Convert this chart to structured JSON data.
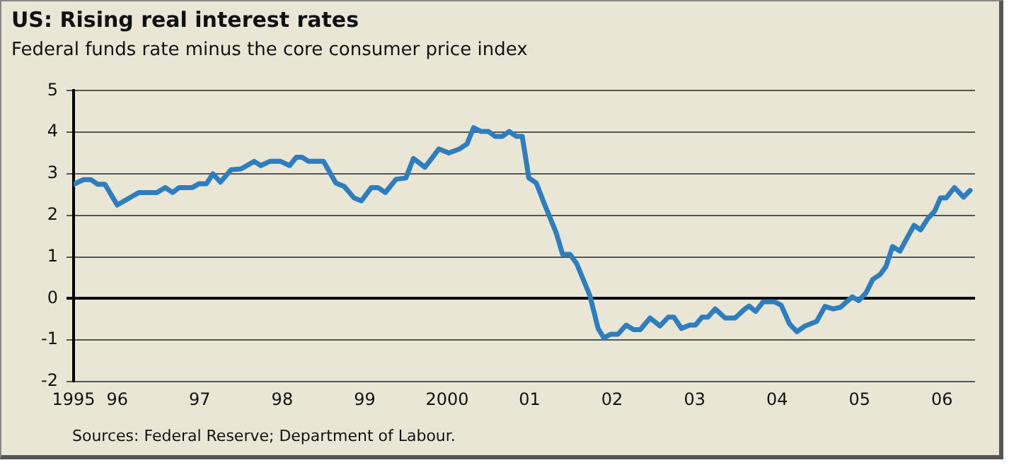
{
  "chart_data": {
    "type": "line",
    "title": "US: Rising real interest rates",
    "subtitle": "Federal funds rate minus the core consumer price index",
    "annotations": [
      "Sources: Federal Reserve; Department of Labour."
    ],
    "series": [
      {
        "color": "#2e7ebf",
        "x": [
          1995.47,
          1995.59,
          1995.68,
          1995.76,
          1995.85,
          1996.0,
          1996.26,
          1996.48,
          1996.58,
          1996.67,
          1996.75,
          1996.91,
          1996.99,
          1997.08,
          1997.16,
          1997.25,
          1997.38,
          1997.5,
          1997.66,
          1997.74,
          1997.85,
          1997.98,
          1998.09,
          1998.17,
          1998.24,
          1998.32,
          1998.5,
          1998.65,
          1998.75,
          1998.87,
          1998.96,
          1999.08,
          1999.16,
          1999.25,
          1999.38,
          1999.5,
          1999.59,
          1999.73,
          1999.9,
          2000.02,
          2000.15,
          2000.24,
          2000.32,
          2000.41,
          2000.5,
          2000.58,
          2000.67,
          2000.75,
          2000.84,
          2000.91,
          2000.99,
          2001.08,
          2001.18,
          2001.32,
          2001.4,
          2001.49,
          2001.57,
          2001.73,
          2001.83,
          2001.9,
          2001.98,
          2002.07,
          2002.17,
          2002.26,
          2002.34,
          2002.46,
          2002.58,
          2002.68,
          2002.75,
          2002.84,
          2002.94,
          2003.01,
          2003.09,
          2003.16,
          2003.25,
          2003.37,
          2003.49,
          2003.61,
          2003.66,
          2003.74,
          2003.83,
          2003.97,
          2004.05,
          2004.15,
          2004.24,
          2004.34,
          2004.48,
          2004.58,
          2004.68,
          2004.77,
          2004.82,
          2004.91,
          2004.99,
          2005.08,
          2005.16,
          2005.25,
          2005.32,
          2005.4,
          2005.49,
          2005.56,
          2005.66,
          2005.74,
          2005.83,
          2005.91,
          2005.98,
          2006.05,
          2006.15,
          2006.26,
          2006.34
        ],
        "values": [
          2.75,
          2.86,
          2.86,
          2.75,
          2.75,
          2.25,
          2.55,
          2.55,
          2.67,
          2.55,
          2.67,
          2.67,
          2.76,
          2.76,
          3.0,
          2.8,
          3.1,
          3.12,
          3.3,
          3.2,
          3.3,
          3.3,
          3.2,
          3.4,
          3.4,
          3.3,
          3.3,
          2.78,
          2.7,
          2.42,
          2.35,
          2.67,
          2.67,
          2.55,
          2.87,
          2.9,
          3.37,
          3.16,
          3.6,
          3.5,
          3.6,
          3.72,
          4.11,
          4.02,
          4.02,
          3.9,
          3.9,
          4.02,
          3.9,
          3.9,
          2.9,
          2.78,
          2.27,
          1.59,
          1.06,
          1.06,
          0.84,
          0.07,
          -0.72,
          -0.95,
          -0.86,
          -0.86,
          -0.64,
          -0.75,
          -0.75,
          -0.47,
          -0.66,
          -0.45,
          -0.45,
          -0.72,
          -0.64,
          -0.64,
          -0.45,
          -0.45,
          -0.25,
          -0.47,
          -0.47,
          -0.25,
          -0.18,
          -0.31,
          -0.08,
          -0.08,
          -0.16,
          -0.61,
          -0.8,
          -0.66,
          -0.55,
          -0.19,
          -0.25,
          -0.21,
          -0.12,
          0.04,
          -0.05,
          0.14,
          0.46,
          0.58,
          0.77,
          1.25,
          1.14,
          1.4,
          1.76,
          1.65,
          1.93,
          2.1,
          2.42,
          2.42,
          2.67,
          2.44,
          2.6
        ]
      }
    ],
    "xlim": [
      1995.47,
      2006.4
    ],
    "xticks": [
      {
        "value": 1995.47,
        "label": "1995"
      },
      {
        "value": 1996,
        "label": "96"
      },
      {
        "value": 1997,
        "label": "97"
      },
      {
        "value": 1998,
        "label": "98"
      },
      {
        "value": 1999,
        "label": "99"
      },
      {
        "value": 2000,
        "label": "2000"
      },
      {
        "value": 2001,
        "label": "01"
      },
      {
        "value": 2002,
        "label": "02"
      },
      {
        "value": 2003,
        "label": "03"
      },
      {
        "value": 2004,
        "label": "04"
      },
      {
        "value": 2005,
        "label": "05"
      },
      {
        "value": 2006,
        "label": "06"
      }
    ],
    "ylim": [
      -2,
      5
    ],
    "yticks": [
      -2,
      -1,
      0,
      1,
      2,
      3,
      4,
      5
    ],
    "grid": "y",
    "legend": false,
    "marker": "none",
    "line_style": "solid"
  }
}
